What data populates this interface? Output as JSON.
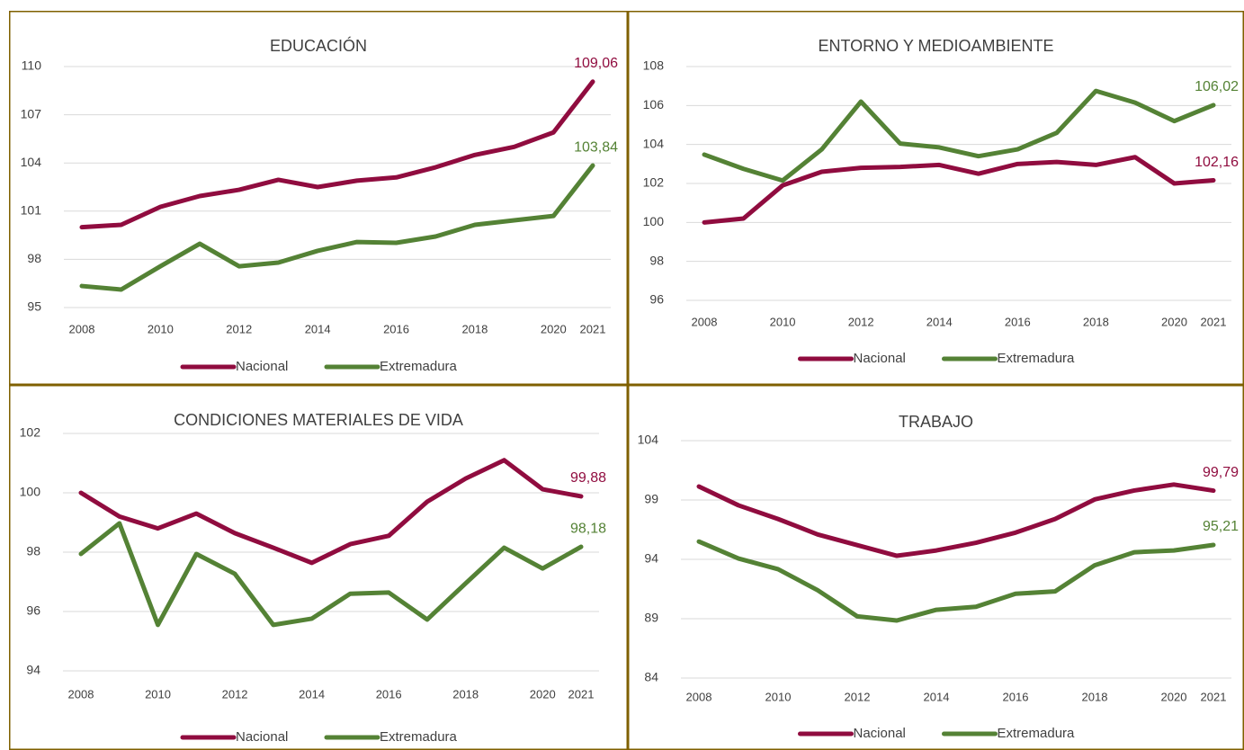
{
  "chart_data": [
    {
      "type": "line",
      "title": "EDUCACIÓN",
      "x": [
        2008,
        2009,
        2010,
        2011,
        2012,
        2013,
        2014,
        2015,
        2016,
        2017,
        2018,
        2019,
        2020,
        2021
      ],
      "xticks": [
        2008,
        2010,
        2012,
        2014,
        2016,
        2018,
        2020,
        2021
      ],
      "ylim": [
        95,
        110
      ],
      "yticks": [
        95,
        98,
        101,
        104,
        107,
        110
      ],
      "grid": true,
      "series": [
        {
          "name": "Nacional",
          "color": "#900c3f",
          "values": [
            100.0,
            100.15,
            101.27,
            101.94,
            102.33,
            102.95,
            102.5,
            102.9,
            103.1,
            103.73,
            104.5,
            105.0,
            105.9,
            109.06
          ],
          "value_labels": [
            null,
            null,
            null,
            null,
            null,
            null,
            null,
            null,
            null,
            null,
            null,
            null,
            null,
            "109,06"
          ]
        },
        {
          "name": "Extremadura",
          "color": "#548235",
          "values": [
            96.34,
            96.12,
            97.57,
            98.97,
            97.57,
            97.8,
            98.53,
            99.08,
            99.03,
            99.42,
            100.15,
            100.43,
            100.7,
            103.84
          ],
          "value_labels": [
            null,
            null,
            null,
            null,
            null,
            null,
            null,
            null,
            null,
            null,
            null,
            null,
            null,
            "103,84"
          ]
        }
      ]
    },
    {
      "type": "line",
      "title": "ENTORNO Y MEDIOAMBIENTE",
      "x": [
        2008,
        2009,
        2010,
        2011,
        2012,
        2013,
        2014,
        2015,
        2016,
        2017,
        2018,
        2019,
        2020,
        2021
      ],
      "xticks": [
        2008,
        2010,
        2012,
        2014,
        2016,
        2018,
        2020,
        2021
      ],
      "ylim": [
        96,
        108
      ],
      "yticks": [
        96,
        98,
        100,
        102,
        104,
        106,
        108
      ],
      "grid": true,
      "series": [
        {
          "name": "Nacional",
          "color": "#900c3f",
          "values": [
            100.0,
            100.2,
            101.9,
            102.6,
            102.8,
            102.85,
            102.95,
            102.5,
            103.0,
            103.1,
            102.95,
            103.35,
            102.0,
            102.16
          ],
          "value_labels": [
            null,
            null,
            null,
            null,
            null,
            null,
            null,
            null,
            null,
            null,
            null,
            null,
            null,
            "102,16"
          ]
        },
        {
          "name": "Extremadura",
          "color": "#548235",
          "values": [
            103.48,
            102.75,
            102.15,
            103.75,
            106.2,
            104.05,
            103.85,
            103.4,
            103.75,
            104.6,
            106.75,
            106.15,
            105.2,
            106.02
          ],
          "value_labels": [
            null,
            null,
            null,
            null,
            null,
            null,
            null,
            null,
            null,
            null,
            null,
            null,
            null,
            "106,02"
          ]
        }
      ]
    },
    {
      "type": "line",
      "title": "CONDICIONES MATERIALES DE VIDA",
      "x": [
        2008,
        2009,
        2010,
        2011,
        2012,
        2013,
        2014,
        2015,
        2016,
        2017,
        2018,
        2019,
        2020,
        2021
      ],
      "xticks": [
        2008,
        2010,
        2012,
        2014,
        2016,
        2018,
        2020,
        2021
      ],
      "ylim": [
        94,
        102
      ],
      "yticks": [
        94,
        96,
        98,
        100,
        102
      ],
      "grid": true,
      "series": [
        {
          "name": "Nacional",
          "color": "#900c3f",
          "values": [
            100.0,
            99.2,
            98.8,
            99.3,
            98.64,
            98.15,
            97.64,
            98.27,
            98.55,
            99.7,
            100.48,
            101.1,
            100.12,
            99.88
          ],
          "value_labels": [
            null,
            null,
            null,
            null,
            null,
            null,
            null,
            null,
            null,
            null,
            null,
            null,
            null,
            "99,88"
          ]
        },
        {
          "name": "Extremadura",
          "color": "#548235",
          "values": [
            97.94,
            98.97,
            95.55,
            97.94,
            97.27,
            95.55,
            95.76,
            96.6,
            96.64,
            95.73,
            96.95,
            98.15,
            97.45,
            98.18
          ],
          "value_labels": [
            null,
            null,
            null,
            null,
            null,
            null,
            null,
            null,
            null,
            null,
            null,
            null,
            null,
            "98,18"
          ]
        }
      ]
    },
    {
      "type": "line",
      "title": "TRABAJO",
      "x": [
        2008,
        2009,
        2010,
        2011,
        2012,
        2013,
        2014,
        2015,
        2016,
        2017,
        2018,
        2019,
        2020,
        2021
      ],
      "xticks": [
        2008,
        2010,
        2012,
        2014,
        2016,
        2018,
        2020,
        2021
      ],
      "ylim": [
        84,
        104
      ],
      "yticks": [
        84,
        89,
        94,
        99,
        104
      ],
      "grid": true,
      "series": [
        {
          "name": "Nacional",
          "color": "#900c3f",
          "values": [
            100.14,
            98.55,
            97.4,
            96.1,
            95.2,
            94.3,
            94.75,
            95.4,
            96.25,
            97.4,
            99.05,
            99.8,
            100.3,
            99.79
          ],
          "value_labels": [
            null,
            null,
            null,
            null,
            null,
            null,
            null,
            null,
            null,
            null,
            null,
            null,
            null,
            "99,79"
          ]
        },
        {
          "name": "Extremadura",
          "color": "#548235",
          "values": [
            95.5,
            94.07,
            93.17,
            91.4,
            89.2,
            88.85,
            89.75,
            90.0,
            91.1,
            91.3,
            93.5,
            94.6,
            94.75,
            95.21
          ],
          "value_labels": [
            null,
            null,
            null,
            null,
            null,
            null,
            null,
            null,
            null,
            null,
            null,
            null,
            null,
            "95,21"
          ]
        }
      ]
    }
  ]
}
